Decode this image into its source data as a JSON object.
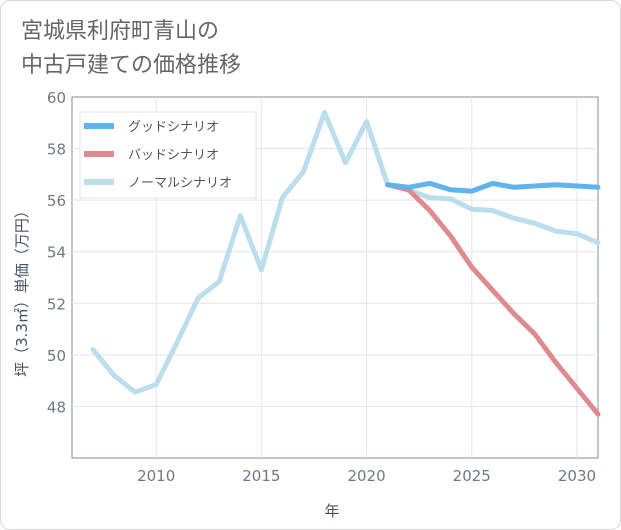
{
  "title_lines": [
    "宮城県利府町青山の",
    "中古戸建ての価格推移"
  ],
  "chart_data": {
    "type": "line",
    "xlabel": "年",
    "ylabel": "坪（3.3㎡）単価（万円）",
    "xlim": [
      2006,
      2031
    ],
    "ylim": [
      46,
      60
    ],
    "xticks": [
      2010,
      2015,
      2020,
      2025,
      2030
    ],
    "yticks": [
      48,
      50,
      52,
      54,
      56,
      58,
      60
    ],
    "grid": true,
    "legend_position": "top-left",
    "series": [
      {
        "name": "グッドシナリオ",
        "color": "#5fb4ee",
        "x": [
          2021,
          2022,
          2023,
          2024,
          2025,
          2026,
          2027,
          2028,
          2029,
          2030,
          2031
        ],
        "y": [
          56.6,
          56.5,
          56.65,
          56.4,
          56.35,
          56.65,
          56.5,
          56.55,
          56.6,
          56.55,
          56.5
        ]
      },
      {
        "name": "バッドシナリオ",
        "color": "#de8a91",
        "x": [
          2021,
          2022,
          2023,
          2024,
          2025,
          2026,
          2027,
          2028,
          2029,
          2030,
          2031
        ],
        "y": [
          56.6,
          56.4,
          55.6,
          54.6,
          53.4,
          52.5,
          51.6,
          50.8,
          49.7,
          48.7,
          47.7
        ]
      },
      {
        "name": "ノーマルシナリオ",
        "color": "#bcdeec",
        "x": [
          2007,
          2008,
          2009,
          2010,
          2011,
          2012,
          2013,
          2014,
          2015,
          2016,
          2017,
          2018,
          2019,
          2020,
          2021,
          2022,
          2023,
          2024,
          2025,
          2026,
          2027,
          2028,
          2029,
          2030,
          2031
        ],
        "y": [
          50.2,
          49.2,
          48.55,
          48.85,
          50.5,
          52.2,
          52.85,
          55.4,
          53.3,
          56.1,
          57.1,
          59.4,
          57.45,
          59.05,
          56.6,
          56.4,
          56.1,
          56.05,
          55.65,
          55.6,
          55.3,
          55.1,
          54.8,
          54.7,
          54.35
        ]
      }
    ]
  }
}
